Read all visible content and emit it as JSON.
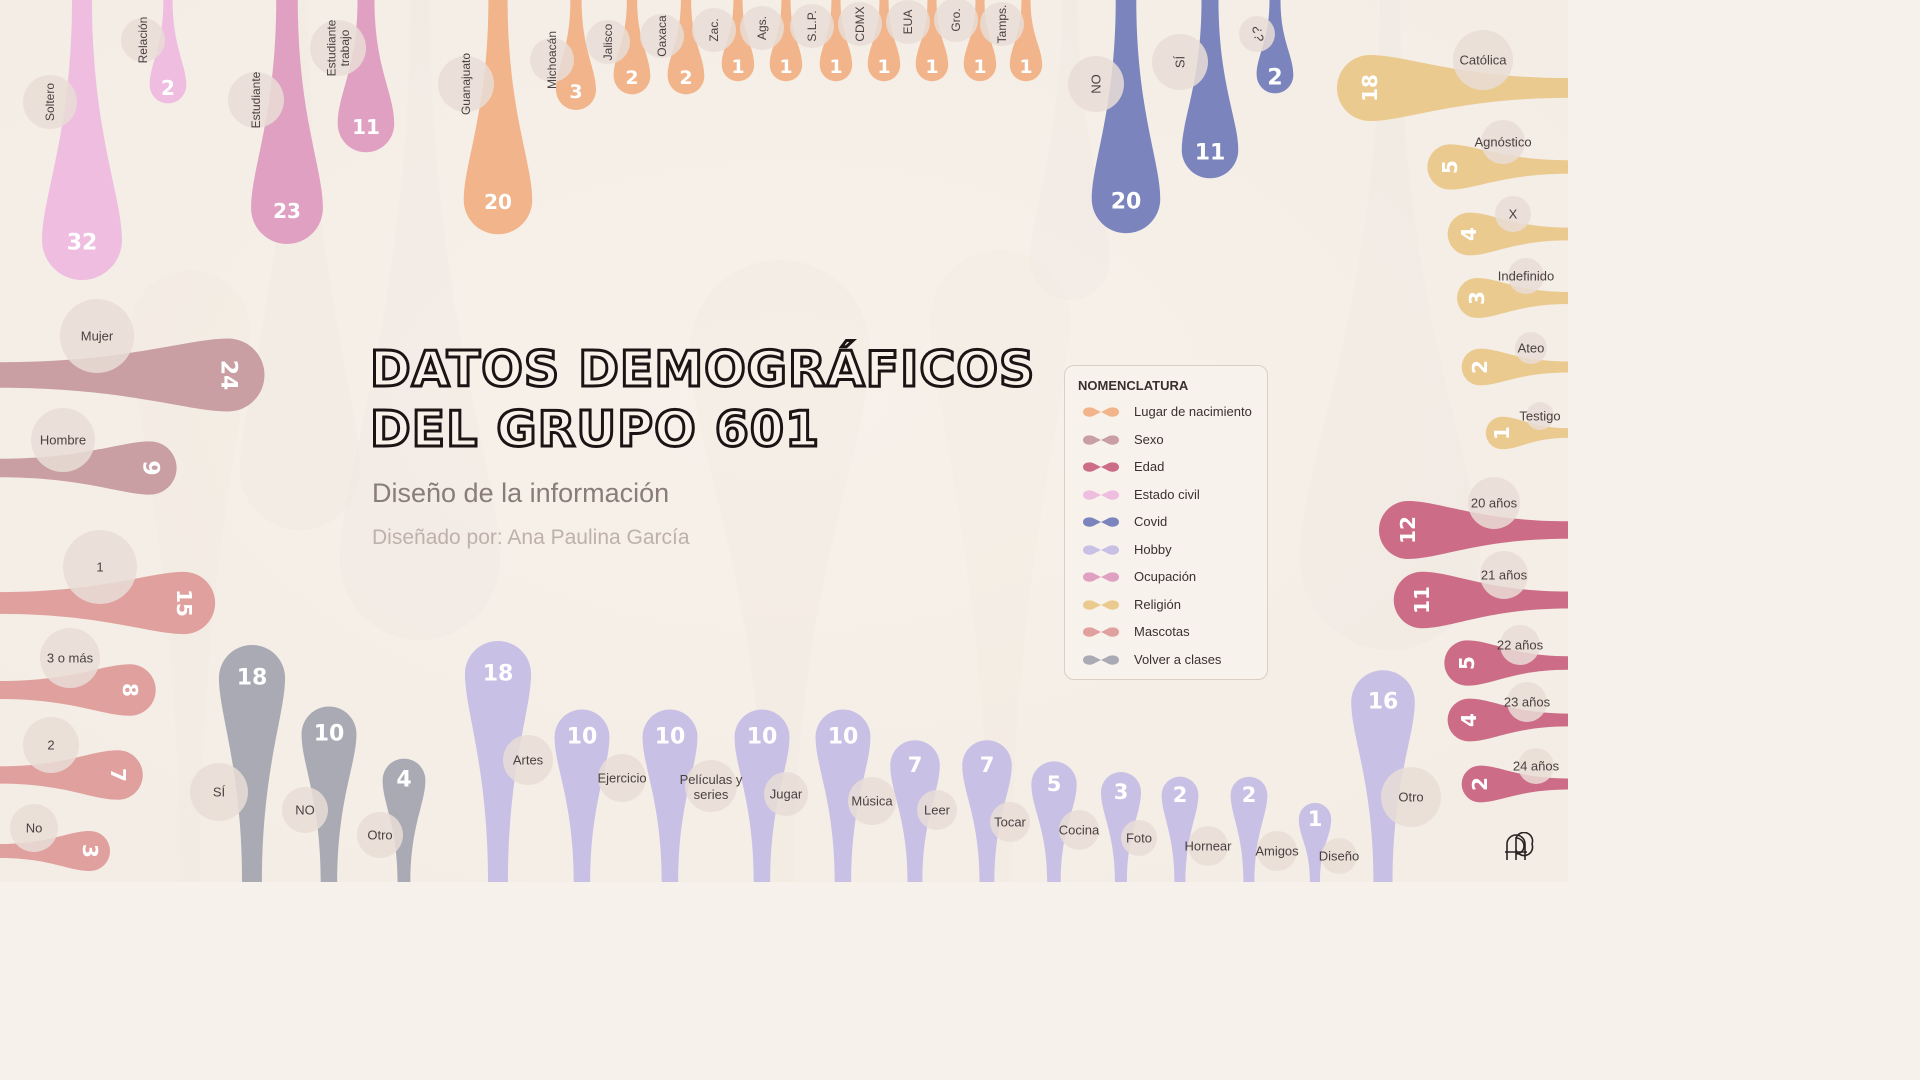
{
  "title_line1": "DATOS DEMOGRÁFICOS",
  "title_line2": "DEL GRUPO 601",
  "subtitle": "Diseño de la información",
  "author": "Diseñado por: Ana Paulina García",
  "legend": {
    "title": "NOMENCLATURA",
    "items": [
      {
        "label": "Lugar de nacimiento",
        "color": "#f2b48a"
      },
      {
        "label": "Sexo",
        "color": "#c99fa3"
      },
      {
        "label": "Edad",
        "color": "#cc6c86"
      },
      {
        "label": "Estado civil",
        "color": "#efbde0"
      },
      {
        "label": "Covid",
        "color": "#7b84bd"
      },
      {
        "label": "Hobby",
        "color": "#c9c0e6"
      },
      {
        "label": "Ocupación",
        "color": "#e0a0c2"
      },
      {
        "label": "Religión",
        "color": "#ebca90"
      },
      {
        "label": "Mascotas",
        "color": "#e0a09e"
      },
      {
        "label": "Volver a clases",
        "color": "#a9aab4"
      }
    ]
  },
  "groups": {
    "estado_civil": {
      "color": "#efbde0",
      "items": [
        {
          "label": "Soltero",
          "value": "32"
        },
        {
          "label": "Relación",
          "value": "2"
        }
      ]
    },
    "ocupacion": {
      "color": "#e0a0c2",
      "items": [
        {
          "label": "Estudiante",
          "value": "23"
        },
        {
          "label": "Estudiante trabajo",
          "value": "11"
        }
      ]
    },
    "lugar_nacimiento": {
      "color": "#f2b48a",
      "items": [
        {
          "label": "Guanajuato",
          "value": "20"
        },
        {
          "label": "Michoacán",
          "value": "3"
        },
        {
          "label": "Jalisco",
          "value": "2"
        },
        {
          "label": "Oaxaca",
          "value": "2"
        },
        {
          "label": "Zac.",
          "value": "1"
        },
        {
          "label": "Ags.",
          "value": "1"
        },
        {
          "label": "S.L.P.",
          "value": "1"
        },
        {
          "label": "CDMX",
          "value": "1"
        },
        {
          "label": "EUA",
          "value": "1"
        },
        {
          "label": "Gro.",
          "value": "1"
        },
        {
          "label": "Tamps.",
          "value": "1"
        }
      ]
    },
    "covid": {
      "color": "#7b84bd",
      "items": [
        {
          "label": "NO",
          "value": "20"
        },
        {
          "label": "SÍ",
          "value": "11"
        },
        {
          "label": "¿?",
          "value": "2"
        }
      ]
    },
    "religion": {
      "color": "#ebca90",
      "items": [
        {
          "label": "Católica",
          "value": "18"
        },
        {
          "label": "Agnóstico",
          "value": "5"
        },
        {
          "label": "X",
          "value": "4"
        },
        {
          "label": "Indefinido",
          "value": "3"
        },
        {
          "label": "Ateo",
          "value": "2"
        },
        {
          "label": "Testigo",
          "value": "1"
        }
      ]
    },
    "edad": {
      "color": "#cc6c86",
      "items": [
        {
          "label": "20 años",
          "value": "12"
        },
        {
          "label": "21 años",
          "value": "11"
        },
        {
          "label": "22 años",
          "value": "5"
        },
        {
          "label": "23 años",
          "value": "4"
        },
        {
          "label": "24 años",
          "value": "2"
        }
      ]
    },
    "sexo": {
      "color": "#c99fa3",
      "items": [
        {
          "label": "Mujer",
          "value": "24"
        },
        {
          "label": "Hombre",
          "value": "9"
        }
      ]
    },
    "mascotas": {
      "color": "#e0a09e",
      "items": [
        {
          "label": "1",
          "value": "15"
        },
        {
          "label": "3 o más",
          "value": "8"
        },
        {
          "label": "2",
          "value": "7"
        },
        {
          "label": "No",
          "value": "3"
        }
      ]
    },
    "volver_clases": {
      "color": "#a9aab4",
      "items": [
        {
          "label": "SÍ",
          "value": "18"
        },
        {
          "label": "NO",
          "value": "10"
        },
        {
          "label": "Otro",
          "value": "4"
        }
      ]
    },
    "hobby": {
      "color": "#c9c0e6",
      "items": [
        {
          "label": "Artes",
          "value": "18"
        },
        {
          "label": "Ejercicio",
          "value": "10"
        },
        {
          "label": "Películas y series",
          "value": "10"
        },
        {
          "label": "Jugar",
          "value": "10"
        },
        {
          "label": "Música",
          "value": "10"
        },
        {
          "label": "Leer",
          "value": "7"
        },
        {
          "label": "Tocar",
          "value": "7"
        },
        {
          "label": "Cocina",
          "value": "5"
        },
        {
          "label": "Foto",
          "value": "3"
        },
        {
          "label": "Hornear",
          "value": "2"
        },
        {
          "label": "Amigos",
          "value": "2"
        },
        {
          "label": "Diseño",
          "value": "1"
        },
        {
          "label": "Otro",
          "value": "16"
        }
      ]
    }
  }
}
